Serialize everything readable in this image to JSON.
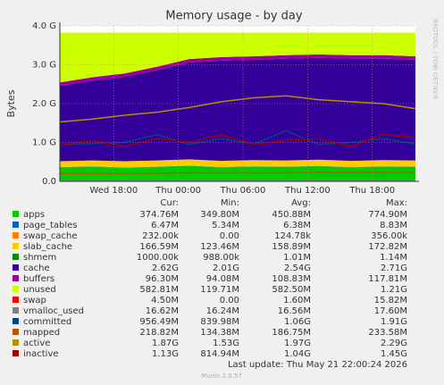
{
  "chart_data": {
    "type": "stacked_area_line",
    "title": "Memory usage - by day",
    "y_label": "Bytes",
    "watermark": "RRDTOOL / TOBI OETIKER",
    "x": [
      13,
      16,
      19,
      22,
      25,
      28,
      31,
      34,
      37,
      40,
      43,
      46
    ],
    "xlim": [
      13,
      46
    ],
    "xticks": [
      {
        "value": 18,
        "label": "Wed 18:00"
      },
      {
        "value": 24,
        "label": "Thu 00:00"
      },
      {
        "value": 30,
        "label": "Thu 06:00"
      },
      {
        "value": 36,
        "label": "Thu 12:00"
      },
      {
        "value": 42,
        "label": "Thu 18:00"
      }
    ],
    "ylim": [
      0,
      4
    ],
    "yticks": [
      {
        "value": 0,
        "label": "0.0"
      },
      {
        "value": 1,
        "label": "1.0 G"
      },
      {
        "value": 2,
        "label": "2.0 G"
      },
      {
        "value": 3,
        "label": "3.0 G"
      },
      {
        "value": 4,
        "label": "4.0 G"
      }
    ],
    "grid": true,
    "legend_headers": [
      "Cur:",
      "Min:",
      "Avg:",
      "Max:"
    ],
    "series": [
      {
        "name": "apps",
        "color": "#00cc00",
        "kind": "area",
        "values": [
          0.36,
          0.38,
          0.35,
          0.37,
          0.4,
          0.36,
          0.38,
          0.37,
          0.39,
          0.36,
          0.38,
          0.37
        ],
        "cur": "374.76M",
        "min": "349.80M",
        "avg": "450.88M",
        "max": "774.90M"
      },
      {
        "name": "page_tables",
        "color": "#0066b3",
        "kind": "area",
        "values": [
          0.006,
          0.006,
          0.006,
          0.006,
          0.006,
          0.006,
          0.006,
          0.006,
          0.006,
          0.006,
          0.006,
          0.006
        ],
        "cur": "6.47M",
        "min": "5.34M",
        "avg": "6.38M",
        "max": "8.83M"
      },
      {
        "name": "swap_cache",
        "color": "#ff8000",
        "kind": "area",
        "values": [
          0.0002,
          0.0002,
          0.0002,
          0.0002,
          0.0002,
          0.0002,
          0.0002,
          0.0002,
          0.0002,
          0.0002,
          0.0002,
          0.0002
        ],
        "cur": "232.00k",
        "min": "0.00",
        "avg": "124.78k",
        "max": "356.00k"
      },
      {
        "name": "slab_cache",
        "color": "#ffcc00",
        "kind": "area",
        "values": [
          0.15,
          0.15,
          0.16,
          0.16,
          0.16,
          0.16,
          0.16,
          0.16,
          0.16,
          0.16,
          0.16,
          0.16
        ],
        "cur": "166.59M",
        "min": "123.46M",
        "avg": "158.89M",
        "max": "172.82M"
      },
      {
        "name": "shmem",
        "color": "#008f00",
        "kind": "area",
        "values": [
          0.001,
          0.001,
          0.001,
          0.001,
          0.001,
          0.001,
          0.001,
          0.001,
          0.001,
          0.001,
          0.001,
          0.001
        ],
        "cur": "1000.00k",
        "min": "988.00k",
        "avg": "1.01M",
        "max": "1.14M"
      },
      {
        "name": "cache",
        "color": "#330099",
        "kind": "area",
        "values": [
          1.94,
          2.05,
          2.17,
          2.32,
          2.49,
          2.58,
          2.58,
          2.62,
          2.62,
          2.63,
          2.61,
          2.59
        ],
        "cur": "2.62G",
        "min": "2.01G",
        "avg": "2.54G",
        "max": "2.71G"
      },
      {
        "name": "buffers",
        "color": "#990099",
        "kind": "area",
        "values": [
          0.09,
          0.09,
          0.09,
          0.09,
          0.09,
          0.09,
          0.09,
          0.09,
          0.09,
          0.09,
          0.09,
          0.09
        ],
        "cur": "96.30M",
        "min": "94.08M",
        "avg": "108.83M",
        "max": "117.81M"
      },
      {
        "name": "unused",
        "color": "#ccff00",
        "kind": "area",
        "values": [
          1.28,
          1.15,
          1.05,
          0.88,
          0.68,
          0.63,
          0.61,
          0.58,
          0.56,
          0.58,
          0.58,
          0.61
        ],
        "cur": "582.81M",
        "min": "119.71M",
        "avg": "582.50M",
        "max": "1.21G"
      },
      {
        "name": "swap",
        "color": "#ff0000",
        "kind": "area",
        "values": [
          4e-06,
          4e-06,
          4e-06,
          4e-06,
          4e-06,
          4e-06,
          4e-06,
          4e-06,
          4e-06,
          4e-06,
          4e-06,
          4e-06
        ],
        "cur": "4.50M",
        "min": "0.00",
        "avg": "1.60M",
        "max": "15.82M"
      },
      {
        "name": "vmalloc_used",
        "color": "#808080",
        "kind": "line",
        "values": [
          0.016,
          0.016,
          0.016,
          0.016,
          0.016,
          0.016,
          0.016,
          0.016,
          0.016,
          0.016,
          0.016,
          0.016
        ],
        "cur": "16.62M",
        "min": "16.24M",
        "avg": "16.56M",
        "max": "17.60M"
      },
      {
        "name": "committed",
        "color": "#00487d",
        "kind": "line",
        "values": [
          0.95,
          0.97,
          1.0,
          1.2,
          0.95,
          1.1,
          0.96,
          1.3,
          0.95,
          1.0,
          1.1,
          0.96
        ],
        "cur": "956.49M",
        "min": "839.98M",
        "avg": "1.06G",
        "max": "1.91G"
      },
      {
        "name": "mapped",
        "color": "#b35a00",
        "kind": "line",
        "values": [
          0.2,
          0.2,
          0.21,
          0.21,
          0.22,
          0.22,
          0.22,
          0.22,
          0.23,
          0.23,
          0.23,
          0.22
        ],
        "cur": "218.82M",
        "min": "134.38M",
        "avg": "186.75M",
        "max": "233.58M"
      },
      {
        "name": "active",
        "color": "#b38f00",
        "kind": "line",
        "values": [
          1.53,
          1.6,
          1.7,
          1.78,
          1.9,
          2.05,
          2.15,
          2.2,
          2.1,
          2.05,
          2.0,
          1.87
        ],
        "cur": "1.87G",
        "min": "1.53G",
        "avg": "1.97G",
        "max": "2.29G"
      },
      {
        "name": "inactive",
        "color": "#990000",
        "kind": "line",
        "values": [
          0.95,
          1.05,
          0.9,
          1.1,
          1.0,
          1.2,
          0.95,
          1.05,
          1.1,
          0.9,
          1.2,
          1.13
        ],
        "cur": "1.13G",
        "min": "814.94M",
        "avg": "1.04G",
        "max": "1.45G"
      }
    ],
    "last_update": "Last update: Thu May 21 22:00:24 2026",
    "footer": "Munin 2.0.57"
  }
}
